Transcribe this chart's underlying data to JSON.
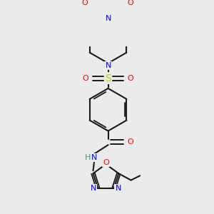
{
  "background_color": "#ebebeb",
  "bond_color": "#1a1a1a",
  "atom_colors": {
    "N": "#0000ff",
    "O": "#ff0000",
    "S": "#cccc00",
    "H": "#4a9090",
    "C": "#1a1a1a"
  },
  "figsize": [
    3.0,
    3.0
  ],
  "dpi": 100
}
